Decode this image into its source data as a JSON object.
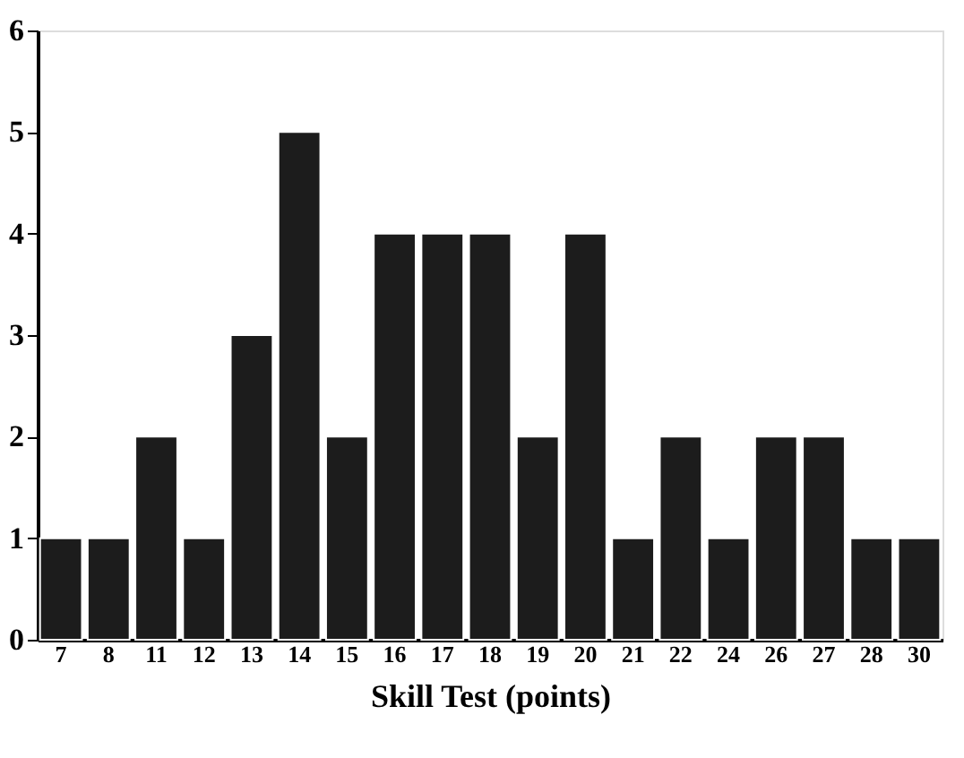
{
  "chart_data": {
    "type": "bar",
    "xlabel": "Skill Test (points)",
    "categories": [
      "7",
      "8",
      "11",
      "12",
      "13",
      "14",
      "15",
      "16",
      "17",
      "18",
      "19",
      "20",
      "21",
      "22",
      "24",
      "26",
      "27",
      "28",
      "30"
    ],
    "values": [
      1,
      1,
      2,
      1,
      3,
      5,
      2,
      4,
      4,
      4,
      2,
      4,
      1,
      2,
      1,
      2,
      2,
      1,
      1
    ],
    "color": "#1c1c1c",
    "ylim": [
      0,
      6
    ],
    "yticks": [
      0,
      1,
      2,
      3,
      4,
      5,
      6
    ],
    "grid": false
  }
}
